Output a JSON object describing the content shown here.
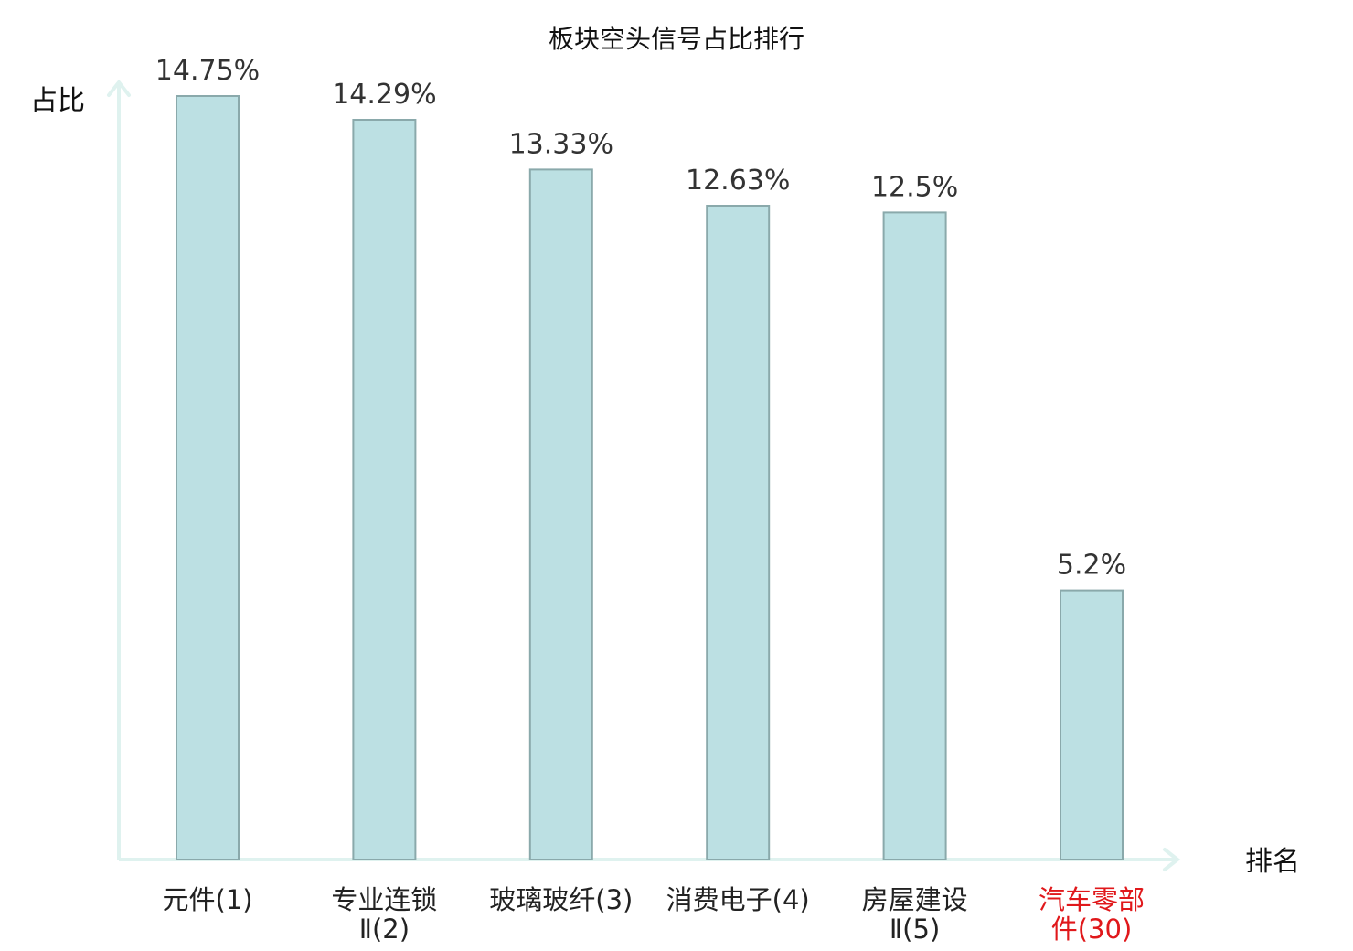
{
  "chart_data": {
    "type": "bar",
    "title": "板块空头信号占比排行",
    "xlabel": "排名",
    "ylabel": "占比",
    "categories": [
      {
        "lines": [
          "元件(1)"
        ],
        "highlight": false
      },
      {
        "lines": [
          "专业连锁",
          "Ⅱ(2)"
        ],
        "highlight": false
      },
      {
        "lines": [
          "玻璃玻纤(3)"
        ],
        "highlight": false
      },
      {
        "lines": [
          "消费电子(4)"
        ],
        "highlight": false
      },
      {
        "lines": [
          "房屋建设",
          "Ⅱ(5)"
        ],
        "highlight": false
      },
      {
        "lines": [
          "汽车零部",
          "件(30)"
        ],
        "highlight": true
      }
    ],
    "values": [
      14.75,
      14.29,
      13.33,
      12.63,
      12.5,
      5.2
    ],
    "value_labels": [
      "14.75%",
      "14.29%",
      "13.33%",
      "12.63%",
      "12.5%",
      "5.2%"
    ],
    "ylim": [
      0,
      14.75
    ],
    "grid": false,
    "legend": "none",
    "colors": {
      "bar_fill": "#bce0e3",
      "bar_stroke": "#8aa9ab",
      "axis": "#dff2ef",
      "highlight_text": "#e0181b",
      "normal_text": "#222222"
    }
  }
}
